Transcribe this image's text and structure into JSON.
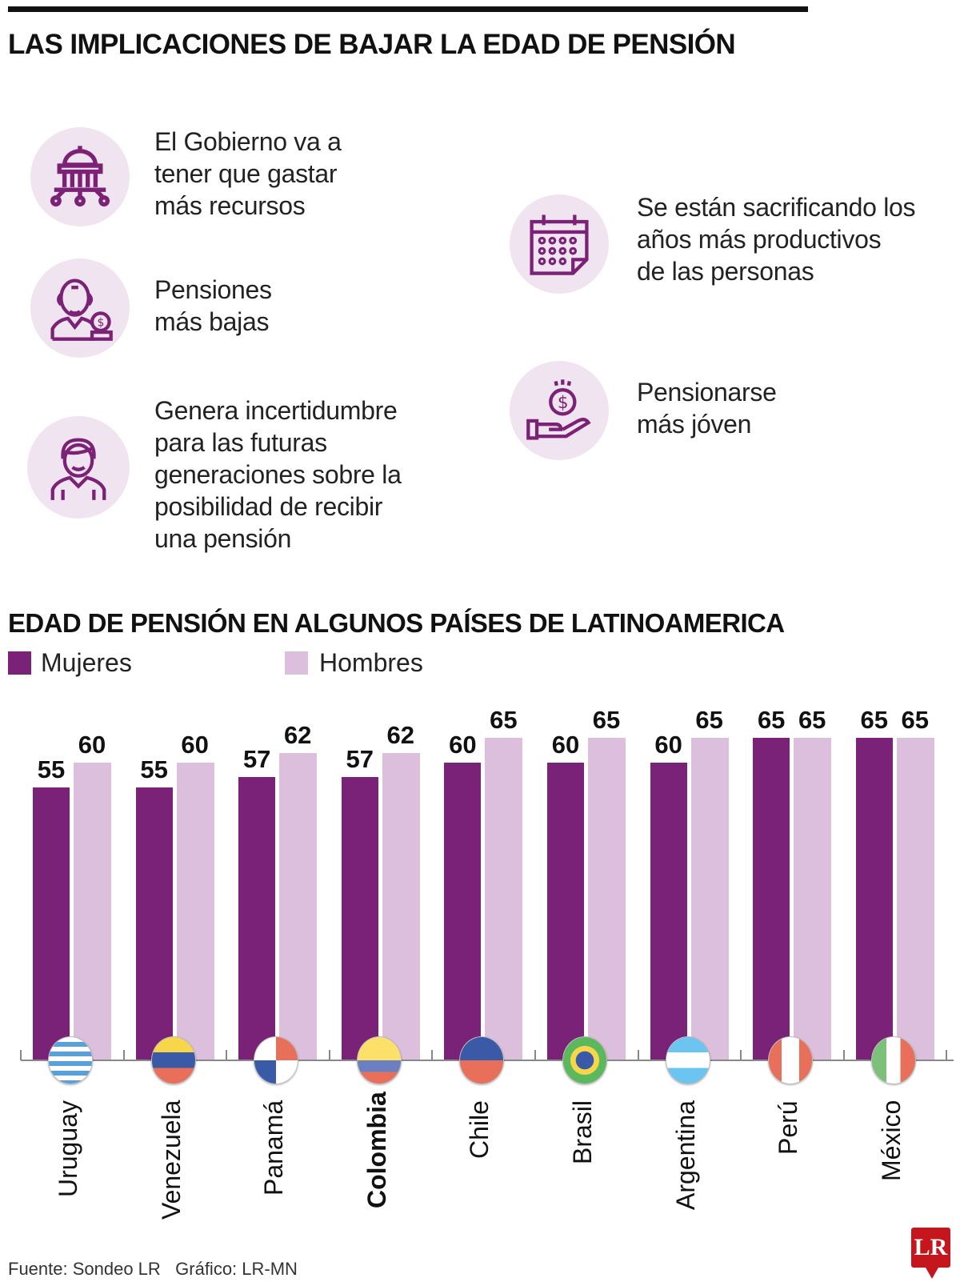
{
  "header": {
    "title": "LAS IMPLICACIONES DE BAJAR LA EDAD DE PENSIÓN"
  },
  "implications": [
    {
      "icon": "government-building-icon",
      "text": "El Gobierno va a\ntener que gastar\nmás recursos"
    },
    {
      "icon": "elderly-man-coin-icon",
      "text": "Pensiones\nmás bajas"
    },
    {
      "icon": "young-person-icon",
      "text": "Genera incertidumbre\npara las futuras\ngeneraciones sobre la\nposibilidad de recibir\nuna pensión"
    },
    {
      "icon": "calendar-icon",
      "text": "Se están sacrificando los\naños más productivos\nde las personas"
    },
    {
      "icon": "hand-coin-icon",
      "text": "Pensionarse\nmás jóven"
    }
  ],
  "colors": {
    "mujeres": "#7a2277",
    "hombres": "#dcbfdd",
    "icon": "#7b2277",
    "icon_bg": "#f0e4f0"
  },
  "chart_data": {
    "type": "bar",
    "title": "EDAD DE PENSIÓN EN ALGUNOS PAÍSES DE LATINOAMERICA",
    "categories": [
      "Uruguay",
      "Venezuela",
      "Panamá",
      "Colombia",
      "Chile",
      "Brasil",
      "Argentina",
      "Perú",
      "México"
    ],
    "highlight": "Colombia",
    "series": [
      {
        "name": "Mujeres",
        "values": [
          55,
          55,
          57,
          57,
          60,
          60,
          60,
          65,
          65
        ]
      },
      {
        "name": "Hombres",
        "values": [
          60,
          60,
          62,
          62,
          65,
          65,
          65,
          65,
          65
        ]
      }
    ],
    "ylim": [
      0,
      65
    ],
    "legend": "top-left",
    "grid": false
  },
  "footer": {
    "source": "Fuente: Sondeo LR   Gráfico: LR-MN",
    "logo": "LR"
  }
}
